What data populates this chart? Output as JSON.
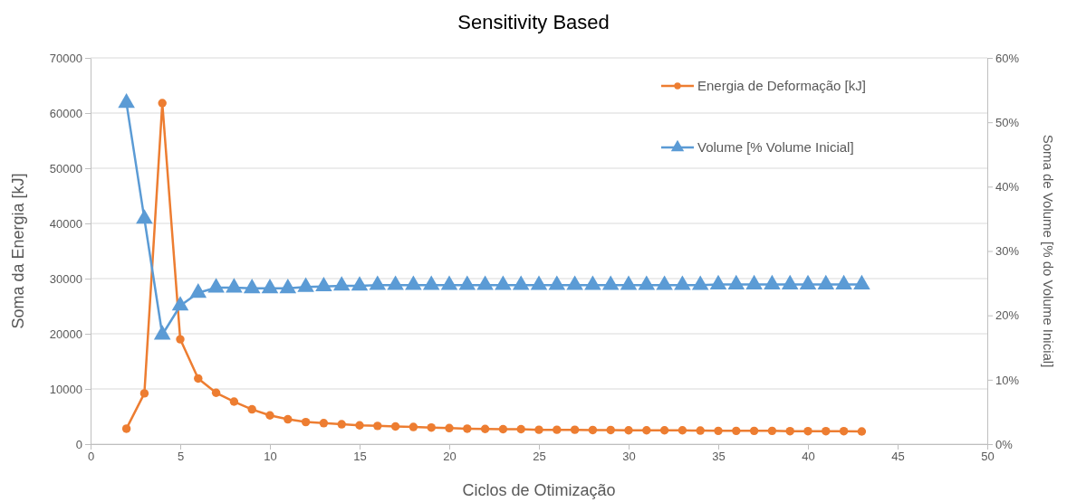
{
  "chart_data": {
    "type": "line",
    "title": "Sensitivity Based",
    "xlabel": "Ciclos de Otimização",
    "ylabel": "Soma da Energia [kJ]",
    "y2label": "Soma de Volume [% do Volume Inicial]",
    "x": [
      2,
      3,
      4,
      5,
      6,
      7,
      8,
      9,
      10,
      11,
      12,
      13,
      14,
      15,
      16,
      17,
      18,
      19,
      20,
      21,
      22,
      23,
      24,
      25,
      26,
      27,
      28,
      29,
      30,
      31,
      32,
      33,
      34,
      35,
      36,
      37,
      38,
      39,
      40,
      41,
      42,
      43
    ],
    "series": [
      {
        "name": "Energia de Deformação [kJ]",
        "color": "#ed7d31",
        "marker": "circle",
        "values": [
          2800,
          9200,
          61800,
          19000,
          11900,
          9300,
          7700,
          6300,
          5200,
          4500,
          4000,
          3800,
          3600,
          3400,
          3300,
          3200,
          3100,
          3000,
          2900,
          2800,
          2750,
          2700,
          2700,
          2600,
          2600,
          2600,
          2550,
          2550,
          2500,
          2500,
          2500,
          2500,
          2450,
          2400,
          2400,
          2400,
          2400,
          2350,
          2350,
          2350,
          2350,
          2300
        ]
      },
      {
        "name": "Volume [% Volume Inicial]",
        "color": "#5b9bd5",
        "marker": "triangle",
        "axis": "y2",
        "values": [
          53,
          35,
          17,
          21.5,
          23.5,
          24.3,
          24.3,
          24.2,
          24.2,
          24.2,
          24.4,
          24.5,
          24.6,
          24.6,
          24.7,
          24.7,
          24.7,
          24.7,
          24.7,
          24.7,
          24.7,
          24.7,
          24.7,
          24.7,
          24.7,
          24.7,
          24.7,
          24.7,
          24.7,
          24.7,
          24.7,
          24.7,
          24.7,
          24.8,
          24.8,
          24.8,
          24.8,
          24.8,
          24.8,
          24.8,
          24.8,
          24.8
        ]
      }
    ],
    "xlim": [
      0,
      50
    ],
    "xticks": [
      0,
      5,
      10,
      15,
      20,
      25,
      30,
      35,
      40,
      45,
      50
    ],
    "ylim": [
      0,
      70000
    ],
    "yticks": [
      0,
      10000,
      20000,
      30000,
      40000,
      50000,
      60000,
      70000
    ],
    "y2lim": [
      0,
      60
    ],
    "y2ticks": [
      {
        "value": 0,
        "label": "0%"
      },
      {
        "value": 10,
        "label": "10%"
      },
      {
        "value": 20,
        "label": "20%"
      },
      {
        "value": 30,
        "label": "30%"
      },
      {
        "value": 40,
        "label": "40%"
      },
      {
        "value": 50,
        "label": "50%"
      },
      {
        "value": 60,
        "label": "60%"
      }
    ],
    "grid": "y",
    "legend": "top right",
    "line_style": "solid"
  }
}
